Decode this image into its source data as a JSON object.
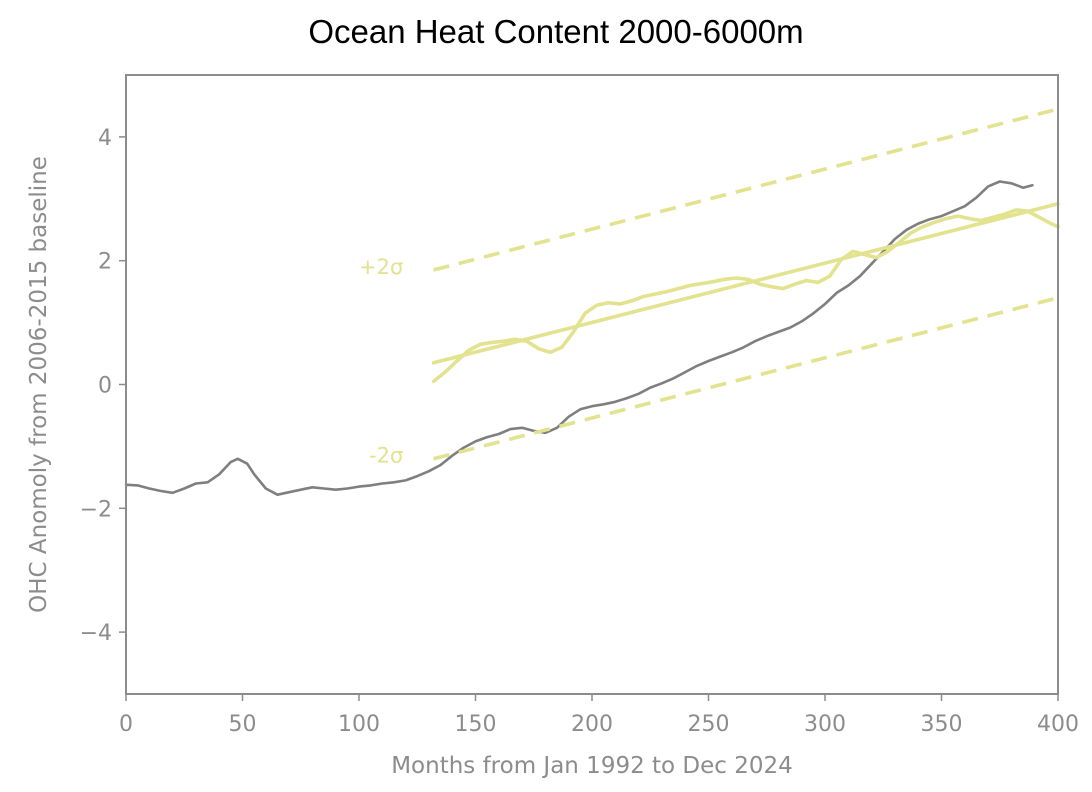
{
  "chart_data": {
    "type": "line",
    "title": "Ocean Heat Content 2000-6000m",
    "xlabel": "Months from Jan 1992 to Dec 2024",
    "ylabel": "OHC Anomoly from 2006-2015 baseline",
    "xlim": [
      0,
      400
    ],
    "ylim": [
      -5,
      5
    ],
    "xticks": [
      0,
      50,
      100,
      150,
      200,
      250,
      300,
      350,
      400
    ],
    "yticks": [
      -4,
      -2,
      0,
      2,
      4
    ],
    "ytick_labels": [
      "−4",
      "−2",
      "0",
      "2",
      "4"
    ],
    "grid": false,
    "annotations": [
      {
        "text": "+2σ",
        "x": 119,
        "y": 1.9
      },
      {
        "text": "-2σ",
        "x": 119,
        "y": -1.15
      }
    ],
    "colors": {
      "observed": "#7f7f7f",
      "model": "#e2e28f",
      "axes": "#8c8c8c"
    },
    "series": [
      {
        "role": "observed",
        "x": [
          0,
          5,
          10,
          15,
          20,
          25,
          30,
          35,
          40,
          45,
          48,
          52,
          55,
          60,
          65,
          70,
          75,
          80,
          85,
          90,
          95,
          100,
          105,
          110,
          115,
          120,
          125,
          130,
          135,
          140,
          145,
          150,
          155,
          160,
          165,
          170,
          175,
          180,
          185,
          190,
          195,
          200,
          205,
          210,
          215,
          220,
          225,
          230,
          235,
          240,
          245,
          250,
          255,
          260,
          265,
          270,
          275,
          280,
          285,
          290,
          295,
          300,
          305,
          310,
          315,
          320,
          325,
          330,
          335,
          340,
          345,
          350,
          355,
          360,
          365,
          370,
          375,
          380,
          385,
          389
        ],
        "y": [
          -1.62,
          -1.63,
          -1.68,
          -1.72,
          -1.75,
          -1.68,
          -1.6,
          -1.58,
          -1.45,
          -1.25,
          -1.2,
          -1.28,
          -1.45,
          -1.68,
          -1.78,
          -1.74,
          -1.7,
          -1.66,
          -1.68,
          -1.7,
          -1.68,
          -1.65,
          -1.63,
          -1.6,
          -1.58,
          -1.55,
          -1.48,
          -1.4,
          -1.3,
          -1.15,
          -1.02,
          -0.92,
          -0.85,
          -0.8,
          -0.72,
          -0.7,
          -0.75,
          -0.78,
          -0.7,
          -0.52,
          -0.4,
          -0.35,
          -0.32,
          -0.28,
          -0.22,
          -0.15,
          -0.05,
          0.02,
          0.1,
          0.2,
          0.3,
          0.38,
          0.45,
          0.52,
          0.6,
          0.7,
          0.78,
          0.85,
          0.92,
          1.02,
          1.15,
          1.3,
          1.48,
          1.6,
          1.75,
          1.95,
          2.15,
          2.35,
          2.5,
          2.6,
          2.67,
          2.72,
          2.8,
          2.88,
          3.02,
          3.2,
          3.28,
          3.25,
          3.18,
          3.22
        ]
      },
      {
        "role": "model",
        "x": [
          132,
          137,
          142,
          147,
          152,
          157,
          162,
          167,
          172,
          177,
          182,
          187,
          192,
          197,
          202,
          207,
          212,
          217,
          222,
          227,
          232,
          237,
          242,
          247,
          252,
          257,
          262,
          267,
          272,
          277,
          282,
          287,
          292,
          297,
          302,
          307,
          312,
          317,
          322,
          327,
          332,
          337,
          342,
          347,
          352,
          357,
          362,
          367,
          372,
          377,
          382,
          387,
          392,
          397,
          400
        ],
        "y": [
          0.05,
          0.2,
          0.38,
          0.55,
          0.65,
          0.68,
          0.7,
          0.73,
          0.7,
          0.58,
          0.52,
          0.6,
          0.85,
          1.15,
          1.28,
          1.32,
          1.3,
          1.35,
          1.42,
          1.46,
          1.5,
          1.55,
          1.6,
          1.63,
          1.66,
          1.7,
          1.72,
          1.7,
          1.62,
          1.58,
          1.55,
          1.62,
          1.68,
          1.65,
          1.75,
          2.02,
          2.15,
          2.1,
          2.05,
          2.15,
          2.3,
          2.45,
          2.55,
          2.62,
          2.68,
          2.72,
          2.68,
          2.65,
          2.7,
          2.75,
          2.82,
          2.8,
          2.7,
          2.6,
          2.55
        ]
      },
      {
        "role": "trend",
        "x": [
          132,
          400
        ],
        "y": [
          0.35,
          2.92
        ]
      },
      {
        "role": "plus-2-sigma",
        "style": "dashed",
        "x": [
          132,
          400
        ],
        "y": [
          1.85,
          4.45
        ]
      },
      {
        "role": "minus-2-sigma",
        "style": "dashed",
        "x": [
          132,
          400
        ],
        "y": [
          -1.2,
          1.4
        ]
      }
    ]
  }
}
